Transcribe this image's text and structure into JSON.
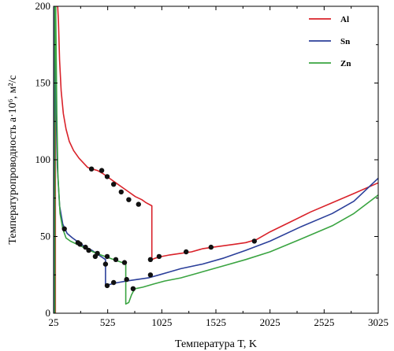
{
  "chart_data": {
    "type": "line",
    "xlabel": "Температура T, K",
    "ylabel": "Температуропроводность a·10⁶, м²/с",
    "xlim": [
      25,
      3025
    ],
    "ylim": [
      0,
      200
    ],
    "x_ticks": [
      "25",
      "525",
      "1025",
      "1525",
      "2025",
      "2525",
      "3025"
    ],
    "y_ticks": [
      "0",
      "50",
      "100",
      "150",
      "200"
    ],
    "grid": false,
    "legend_position": "top-right",
    "series": [
      {
        "name": "Al",
        "color": "#d9222a",
        "line": [
          [
            25,
            0
          ],
          [
            42,
            0
          ],
          [
            42,
            95
          ],
          [
            43,
            200
          ],
          [
            63,
            200
          ],
          [
            70,
            190
          ],
          [
            80,
            165
          ],
          [
            95,
            145
          ],
          [
            115,
            130
          ],
          [
            140,
            120
          ],
          [
            170,
            112
          ],
          [
            210,
            106
          ],
          [
            260,
            101
          ],
          [
            300,
            98
          ],
          [
            340,
            95
          ],
          [
            380,
            94
          ],
          [
            430,
            93
          ],
          [
            480,
            91
          ],
          [
            540,
            88
          ],
          [
            600,
            85
          ],
          [
            660,
            82
          ],
          [
            720,
            79
          ],
          [
            780,
            76
          ],
          [
            840,
            74
          ],
          [
            880,
            72
          ],
          [
            933,
            70
          ],
          [
            933,
            35
          ],
          [
            970,
            36
          ],
          [
            1025,
            37
          ],
          [
            1100,
            38
          ],
          [
            1200,
            39
          ],
          [
            1300,
            40
          ],
          [
            1400,
            42
          ],
          [
            1500,
            43
          ],
          [
            1600,
            44
          ],
          [
            1700,
            45
          ],
          [
            1800,
            46
          ],
          [
            1900,
            48
          ],
          [
            2025,
            53
          ],
          [
            2200,
            59
          ],
          [
            2400,
            66
          ],
          [
            2600,
            72
          ],
          [
            2800,
            78
          ],
          [
            3025,
            85
          ]
        ],
        "points": [
          [
            375,
            94
          ],
          [
            470,
            93
          ],
          [
            520,
            89
          ],
          [
            580,
            84
          ],
          [
            650,
            79
          ],
          [
            720,
            74
          ],
          [
            810,
            71
          ],
          [
            920,
            35
          ],
          [
            1000,
            37
          ],
          [
            1250,
            40
          ],
          [
            1480,
            43
          ],
          [
            1880,
            47
          ]
        ]
      },
      {
        "name": "Sn",
        "color": "#2b3f9a",
        "line": [
          [
            25,
            0
          ],
          [
            34,
            0
          ],
          [
            34,
            70
          ],
          [
            35,
            200
          ],
          [
            41,
            200
          ],
          [
            50,
            130
          ],
          [
            60,
            95
          ],
          [
            80,
            70
          ],
          [
            110,
            58
          ],
          [
            150,
            52
          ],
          [
            200,
            49
          ],
          [
            260,
            46
          ],
          [
            320,
            43
          ],
          [
            380,
            41
          ],
          [
            440,
            38
          ],
          [
            505,
            35
          ],
          [
            505,
            18
          ],
          [
            560,
            19
          ],
          [
            620,
            20
          ],
          [
            700,
            21
          ],
          [
            800,
            22
          ],
          [
            900,
            23
          ],
          [
            1000,
            25
          ],
          [
            1100,
            27
          ],
          [
            1200,
            29
          ],
          [
            1400,
            32
          ],
          [
            1600,
            36
          ],
          [
            1800,
            41
          ],
          [
            2025,
            47
          ],
          [
            2300,
            56
          ],
          [
            2600,
            65
          ],
          [
            2800,
            73
          ],
          [
            3025,
            88
          ]
        ],
        "points": [
          [
            125,
            55
          ],
          [
            250,
            46
          ],
          [
            320,
            43
          ],
          [
            410,
            37
          ],
          [
            505,
            32
          ],
          [
            520,
            18
          ],
          [
            580,
            20
          ],
          [
            700,
            22
          ],
          [
            920,
            25
          ]
        ]
      },
      {
        "name": "Zn",
        "color": "#3aa441",
        "line": [
          [
            25,
            0
          ],
          [
            37,
            0
          ],
          [
            37,
            60
          ],
          [
            38,
            200
          ],
          [
            45,
            200
          ],
          [
            55,
            130
          ],
          [
            65,
            90
          ],
          [
            85,
            65
          ],
          [
            110,
            55
          ],
          [
            140,
            49
          ],
          [
            180,
            47
          ],
          [
            240,
            45
          ],
          [
            300,
            43
          ],
          [
            360,
            41
          ],
          [
            420,
            39
          ],
          [
            500,
            37
          ],
          [
            580,
            35
          ],
          [
            660,
            33
          ],
          [
            692,
            32
          ],
          [
            692,
            6
          ],
          [
            720,
            7
          ],
          [
            745,
            12
          ],
          [
            760,
            14
          ],
          [
            780,
            16
          ],
          [
            850,
            17
          ],
          [
            950,
            19
          ],
          [
            1050,
            21
          ],
          [
            1200,
            23
          ],
          [
            1400,
            27
          ],
          [
            1600,
            31
          ],
          [
            1800,
            35
          ],
          [
            2025,
            40
          ],
          [
            2300,
            48
          ],
          [
            2600,
            57
          ],
          [
            2800,
            65
          ],
          [
            3025,
            77
          ]
        ],
        "points": [
          [
            270,
            45
          ],
          [
            350,
            41
          ],
          [
            430,
            39
          ],
          [
            520,
            37
          ],
          [
            600,
            35
          ],
          [
            680,
            33
          ],
          [
            760,
            16
          ]
        ]
      }
    ]
  }
}
